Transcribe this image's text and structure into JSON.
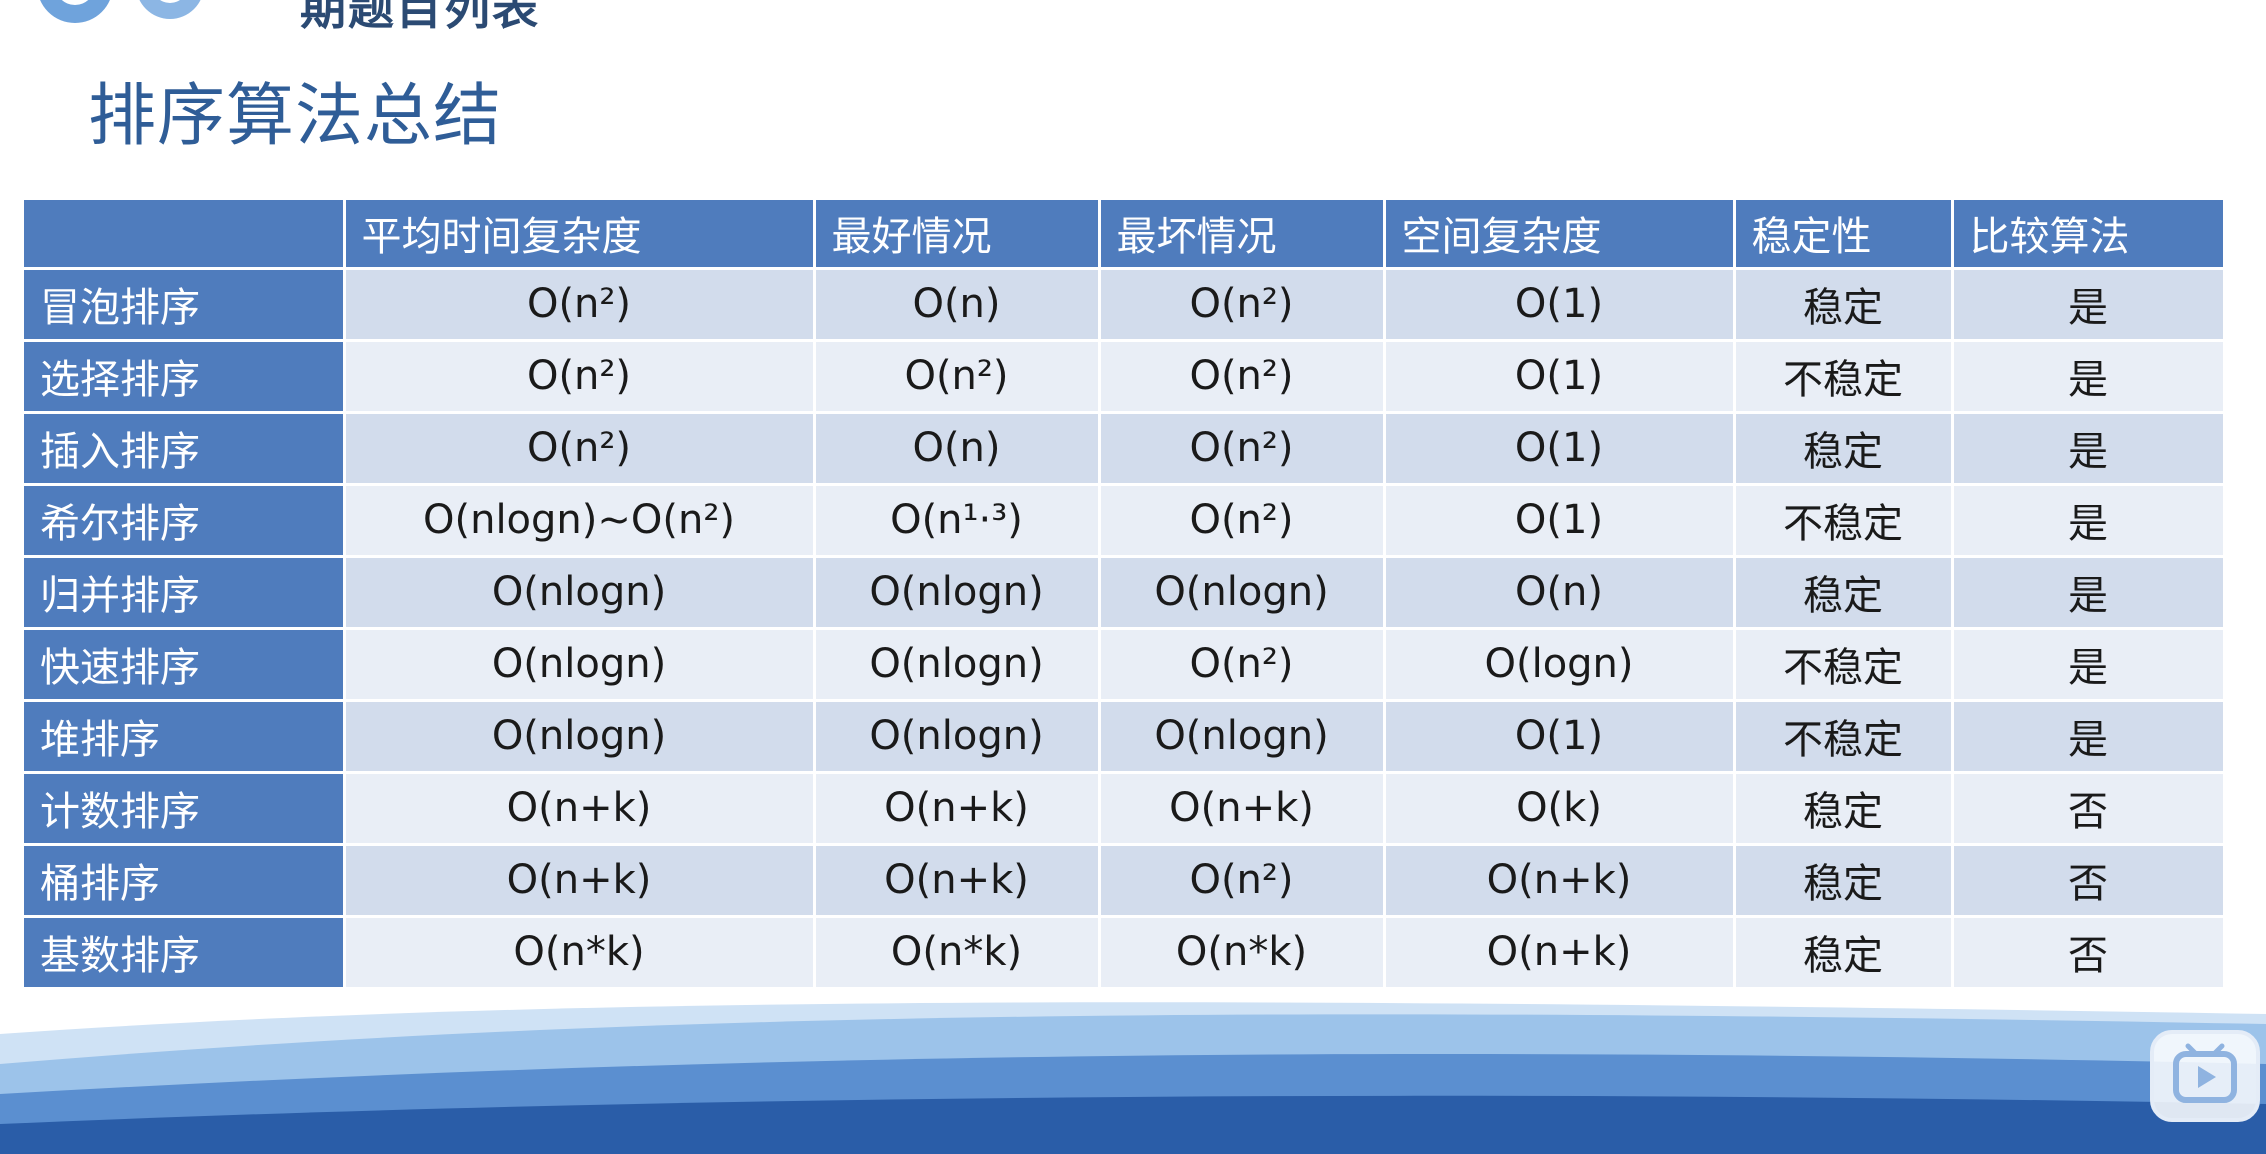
{
  "header": {
    "cut_title": "期题目列表"
  },
  "title": "排序算法总结",
  "table": {
    "columns": [
      "",
      "平均时间复杂度",
      "最好情况",
      "最坏情况",
      "空间复杂度",
      "稳定性",
      "比较算法"
    ],
    "rows": [
      {
        "name": "冒泡排序",
        "avg": "O(n²)",
        "best": "O(n)",
        "worst": "O(n²)",
        "space": "O(1)",
        "stable": "稳定",
        "compare": "是"
      },
      {
        "name": "选择排序",
        "avg": "O(n²)",
        "best": "O(n²)",
        "worst": "O(n²)",
        "space": "O(1)",
        "stable": "不稳定",
        "compare": "是"
      },
      {
        "name": "插入排序",
        "avg": "O(n²)",
        "best": "O(n)",
        "worst": "O(n²)",
        "space": "O(1)",
        "stable": "稳定",
        "compare": "是"
      },
      {
        "name": "希尔排序",
        "avg": "O(nlogn)~O(n²)",
        "best": "O(n¹·³)",
        "worst": "O(n²)",
        "space": "O(1)",
        "stable": "不稳定",
        "compare": "是"
      },
      {
        "name": "归并排序",
        "avg": "O(nlogn)",
        "best": "O(nlogn)",
        "worst": "O(nlogn)",
        "space": "O(n)",
        "stable": "稳定",
        "compare": "是"
      },
      {
        "name": "快速排序",
        "avg": "O(nlogn)",
        "best": "O(nlogn)",
        "worst": "O(n²)",
        "space": "O(logn)",
        "stable": "不稳定",
        "compare": "是"
      },
      {
        "name": "堆排序",
        "avg": "O(nlogn)",
        "best": "O(nlogn)",
        "worst": "O(nlogn)",
        "space": "O(1)",
        "stable": "不稳定",
        "compare": "是"
      },
      {
        "name": "计数排序",
        "avg": "O(n+k)",
        "best": "O(n+k)",
        "worst": "O(n+k)",
        "space": "O(k)",
        "stable": "稳定",
        "compare": "否"
      },
      {
        "name": "桶排序",
        "avg": "O(n+k)",
        "best": "O(n+k)",
        "worst": "O(n²)",
        "space": "O(n+k)",
        "stable": "稳定",
        "compare": "否"
      },
      {
        "name": "基数排序",
        "avg": "O(n*k)",
        "best": "O(n*k)",
        "worst": "O(n*k)",
        "space": "O(n+k)",
        "stable": "稳定",
        "compare": "否"
      }
    ]
  },
  "player": {
    "icon": "play-icon"
  },
  "colors": {
    "header_bg": "#4f7cbd",
    "row_odd": "#d2dcec",
    "row_even": "#e9eef6",
    "title": "#2f5d97",
    "wave_dark": "#2a5da8",
    "wave_light": "#9cc3ea"
  }
}
